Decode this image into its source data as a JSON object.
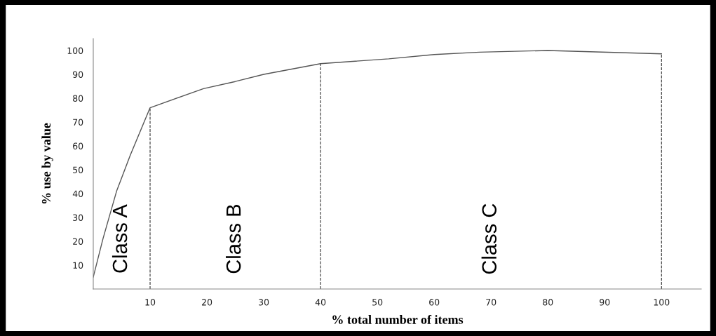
{
  "chart_data": {
    "type": "line",
    "xlabel": "% total number of items",
    "ylabel": "% use by value",
    "x": [
      0,
      1.7,
      4.1,
      6.5,
      10,
      19.4,
      25,
      30,
      40,
      52,
      60,
      68,
      80,
      100
    ],
    "series": [
      {
        "color": "#555555",
        "values": [
          5,
          21,
          41,
          56,
          76,
          84,
          87,
          90,
          94.5,
          96.5,
          98.3,
          99.3,
          100,
          98.6
        ]
      }
    ],
    "xlim": [
      0,
      107
    ],
    "ylim": [
      0,
      105
    ],
    "xticks": [
      10,
      20,
      30,
      40,
      50,
      60,
      70,
      80,
      90,
      100
    ],
    "yticks": [
      10,
      20,
      30,
      40,
      50,
      60,
      70,
      80,
      90,
      100
    ],
    "ref_lines": [
      {
        "axis": "x",
        "value": 10,
        "line_style": "dashed",
        "color": "#333333"
      },
      {
        "axis": "x",
        "value": 40,
        "line_style": "dashed",
        "color": "#333333"
      },
      {
        "axis": "x",
        "value": 100,
        "line_style": "dashed",
        "color": "#333333"
      }
    ],
    "annotations": [
      "Class A",
      "Class B",
      "Class C"
    ],
    "grid": false,
    "legend": false,
    "marker": "none",
    "line_style": "solid"
  }
}
